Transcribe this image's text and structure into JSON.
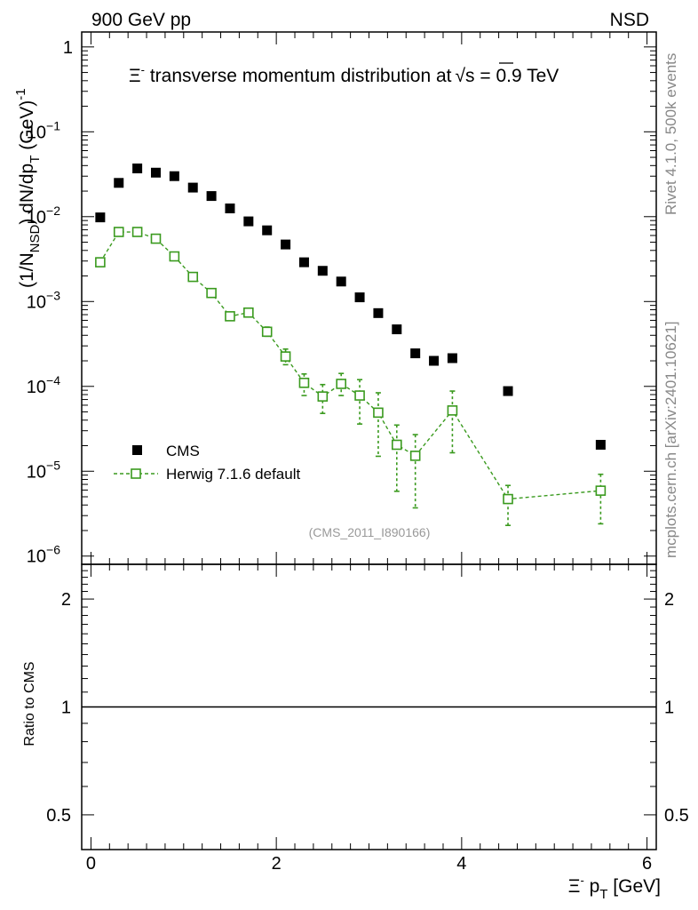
{
  "header": {
    "left_label": "900 GeV pp",
    "right_label": "NSD"
  },
  "side_labels": {
    "rivet": "Rivet 4.1.0,  500k events",
    "mcplots": "mcplots.cern.ch [arXiv:2401.10621]"
  },
  "analysis_id": "(CMS_2011_I890166)",
  "colors": {
    "data": "#000000",
    "mc": "#3a9a1e",
    "side_text": "#888888"
  },
  "chart_data": [
    {
      "type": "scatter",
      "panel": "main",
      "title": "Ξ⁻ transverse momentum distribution at √s = 0.9 TeV",
      "title_parts": {
        "particle": "Ξ",
        "sup": "-",
        "rest": " transverse momentum distribution at",
        "sqrt": "s",
        "energy": " = 0.9 TeV"
      },
      "ylabel": "(1/N_NSD) dN/dp_T (GeV)^-1",
      "ylabel_parts": {
        "a": "(1/N",
        "sub1": "NSD",
        "b": ") dN/dp",
        "sub2": "T",
        "c": " (GeV)",
        "sup": "-1"
      },
      "yscale": "log",
      "ylim": [
        8e-07,
        1.5
      ],
      "xlim": [
        -0.1,
        6.1
      ],
      "y_tick_labels": [
        {
          "base": "1",
          "exp": ""
        },
        {
          "base": "10",
          "exp": "−1"
        },
        {
          "base": "10",
          "exp": "−2"
        },
        {
          "base": "10",
          "exp": "−3"
        },
        {
          "base": "10",
          "exp": "−4"
        },
        {
          "base": "10",
          "exp": "−5"
        },
        {
          "base": "10",
          "exp": "−6"
        }
      ],
      "legend_position": "lower-left",
      "series": [
        {
          "name": "CMS",
          "style": "filled-square",
          "x": [
            0.1,
            0.3,
            0.5,
            0.7,
            0.9,
            1.1,
            1.3,
            1.5,
            1.7,
            1.9,
            2.1,
            2.3,
            2.5,
            2.7,
            2.9,
            3.1,
            3.3,
            3.5,
            3.7,
            3.9,
            4.5,
            5.5
          ],
          "y": [
            0.0098,
            0.025,
            0.037,
            0.033,
            0.03,
            0.022,
            0.0175,
            0.0125,
            0.0088,
            0.0069,
            0.0047,
            0.0029,
            0.0023,
            0.00172,
            0.00112,
            0.00073,
            0.00047,
            0.000245,
            0.0002,
            0.000215,
            8.8e-05,
            2.05e-05
          ]
        },
        {
          "name": "Herwig 7.1.6 default",
          "style": "open-square-dashed",
          "x": [
            0.1,
            0.3,
            0.5,
            0.7,
            0.9,
            1.1,
            1.3,
            1.5,
            1.7,
            1.9,
            2.1,
            2.3,
            2.5,
            2.7,
            2.9,
            3.1,
            3.3,
            3.5,
            3.9,
            4.5,
            5.5
          ],
          "y": [
            0.0029,
            0.0066,
            0.0066,
            0.0055,
            0.0034,
            0.00195,
            0.00126,
            0.00067,
            0.00074,
            0.00044,
            0.000225,
            0.00011,
            7.6e-05,
            0.000107,
            7.8e-05,
            4.9e-05,
            2.05e-05,
            1.52e-05,
            5.2e-05,
            4.7e-06,
            5.9e-06
          ],
          "y_low": [
            0.0029,
            0.0066,
            0.0066,
            0.0055,
            0.0034,
            0.00195,
            0.00126,
            0.00067,
            0.00074,
            0.00039,
            0.00018,
            7.8e-05,
            4.8e-05,
            7.8e-05,
            3.6e-05,
            1.5e-05,
            5.8e-06,
            3.7e-06,
            1.65e-05,
            2.3e-06,
            2.4e-06
          ],
          "y_high": [
            0.0029,
            0.0066,
            0.0066,
            0.0055,
            0.0034,
            0.00195,
            0.00126,
            0.00067,
            0.00074,
            0.0005,
            0.000275,
            0.00014,
            0.000105,
            0.000142,
            0.00012,
            8.4e-05,
            3.5e-05,
            2.7e-05,
            8.8e-05,
            6.8e-06,
            9.2e-06
          ]
        }
      ]
    },
    {
      "type": "line",
      "panel": "ratio",
      "xlabel_parts": {
        "particle": "Ξ",
        "sup": "-",
        "rest": " p",
        "sub": "T",
        "unit": " [GeV]"
      },
      "xlabel": "Ξ⁻ p_T [GeV]",
      "ylabel": "Ratio to CMS",
      "yscale": "log",
      "ylim": [
        0.4,
        2.5
      ],
      "xlim": [
        -0.1,
        6.1
      ],
      "x_ticks": [
        0,
        2,
        4,
        6
      ],
      "x_tick_labels": [
        "0",
        "2",
        "4",
        "6"
      ],
      "y_ticks": [
        0.5,
        1,
        2
      ],
      "y_tick_labels": [
        "0.5",
        "1",
        "2"
      ],
      "reference_line": 1
    }
  ]
}
